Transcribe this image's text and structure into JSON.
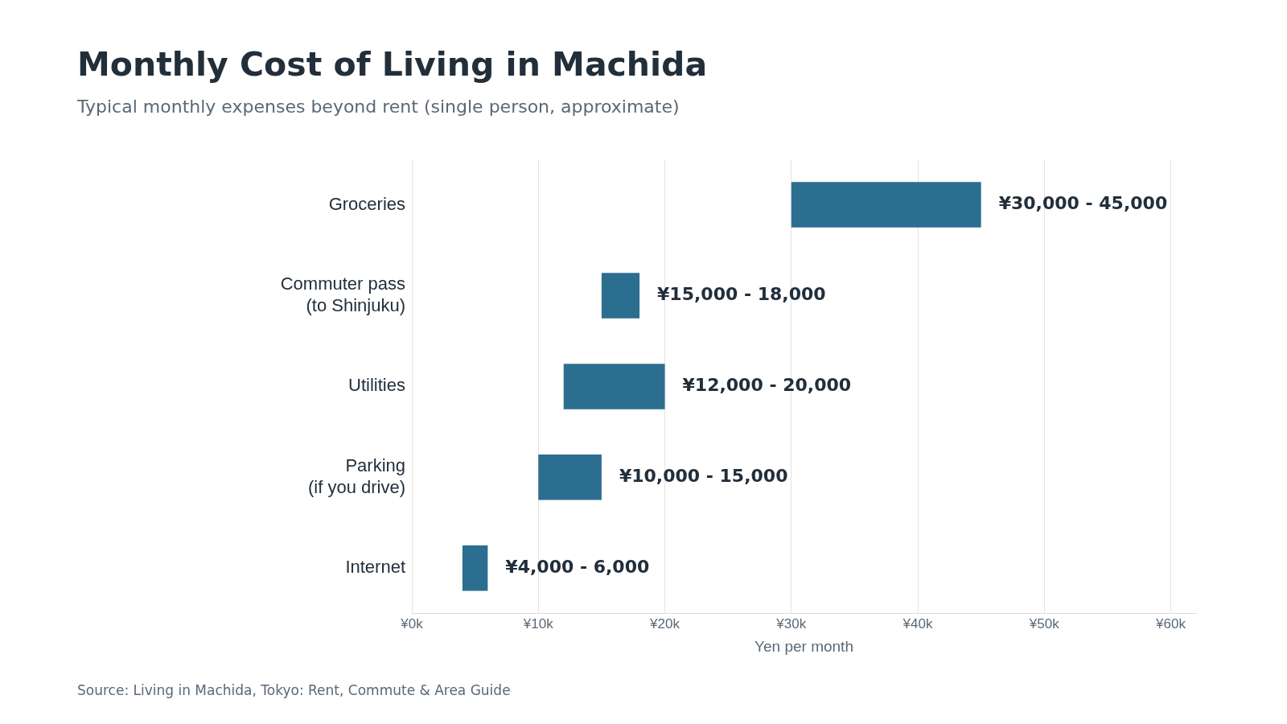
{
  "chart_data": {
    "type": "bar",
    "orientation": "horizontal",
    "title": "Monthly Cost of Living in Machida",
    "subtitle": "Typical monthly expenses beyond rent (single person, approximate)",
    "xlabel": "Yen per month",
    "categories": [
      "Groceries",
      "Commuter pass\n(to Shinjuku)",
      "Utilities",
      "Parking\n(if you drive)",
      "Internet"
    ],
    "base": [
      30000,
      15000,
      12000,
      10000,
      4000
    ],
    "values": [
      15000,
      3000,
      8000,
      5000,
      2000
    ],
    "color": "#2c6e8f",
    "xlim": [
      0,
      62000
    ],
    "xticks": [
      {
        "value": 0,
        "label": "¥0k"
      },
      {
        "value": 10000,
        "label": "¥10k"
      },
      {
        "value": 20000,
        "label": "¥20k"
      },
      {
        "value": 30000,
        "label": "¥30k"
      },
      {
        "value": 40000,
        "label": "¥40k"
      },
      {
        "value": 50000,
        "label": "¥50k"
      },
      {
        "value": 60000,
        "label": "¥60k"
      }
    ],
    "grid": "x",
    "legend": false,
    "annotations": [
      {
        "text": "¥30,000 - 45,000",
        "x": 45000,
        "y": "Groceries"
      },
      {
        "text": "¥15,000 - 18,000",
        "x": 18000,
        "y": "Commuter pass\n(to Shinjuku)"
      },
      {
        "text": "¥12,000 - 20,000",
        "x": 20000,
        "y": "Utilities"
      },
      {
        "text": "¥10,000 - 15,000",
        "x": 15000,
        "y": "Parking\n(if you drive)"
      },
      {
        "text": "¥4,000 - 6,000",
        "x": 6000,
        "y": "Internet"
      },
      "Source: Living in Machida, Tokyo: Rent, Commute & Area Guide"
    ]
  }
}
